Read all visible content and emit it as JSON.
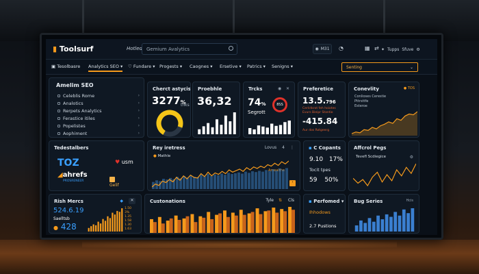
{
  "topbar": {
    "logo": "Toolsurf",
    "home_tab": "Hotled",
    "search_value": "Gemium Avalytics",
    "button_1_label": "M31",
    "menu_label": "Tupps",
    "menu_label_2": "Sfuve"
  },
  "nav": {
    "items": [
      "Tesolbasre",
      "Analytics SEO",
      "Fundare",
      "Progests",
      "Caognes",
      "Ersetive",
      "Patrics",
      "Senigns"
    ],
    "select_value": "Senting"
  },
  "sidebar": {
    "title": "Amelim SEO",
    "items": [
      "Celeblis Rome",
      "Analotics",
      "Rerpets Analytics",
      "Ferastice itiles",
      "Popelistes",
      "Aophiment"
    ]
  },
  "card_a": {
    "title": "Cherct astycis",
    "value": "3277",
    "unit": "%",
    "sub": "tnks",
    "gauge_percent": 72
  },
  "card_b": {
    "title": "Proebhle",
    "value": "36,32",
    "bars": [
      20,
      32,
      45,
      28,
      60,
      38,
      75,
      52,
      88
    ]
  },
  "card_c": {
    "title": "Trcks",
    "value": "74",
    "unit": "%",
    "label": "Segrott",
    "badge": "8SS",
    "bars": [
      28,
      22,
      40,
      35,
      30,
      48,
      38,
      42,
      55,
      62
    ]
  },
  "card_d": {
    "title": "Preferetice",
    "value_1": "13.5.",
    "value_1_small": "796",
    "value_2": "-415.84",
    "lines": [
      "Cerlctkrot feh hoiotes",
      "Evurs Bieipr Stantio",
      "Aur dos Rotgeerg"
    ]
  },
  "card_e": {
    "title": "Conevlity",
    "badge": "TOS",
    "lines": [
      "Conlioses Cerestie",
      "Pttrsttfe",
      "Esteroe"
    ],
    "line": [
      10,
      14,
      12,
      20,
      18,
      26,
      22,
      30,
      34,
      40,
      36,
      48,
      44,
      55,
      60,
      58,
      66
    ]
  },
  "brands": {
    "title": "Tedestalbers",
    "logos": [
      "TOZ",
      "ahrefs",
      "usm"
    ],
    "ahrefs_sub": "PROSRENEER",
    "usm_sub": "Gelif"
  },
  "traffic": {
    "title": "Rey iretress",
    "menu": "Lovus",
    "badge": "4",
    "legend": "Mathle",
    "annotation": "Amealthe",
    "series": [
      18,
      22,
      20,
      26,
      24,
      28,
      25,
      31,
      27,
      33,
      29,
      34,
      31,
      30,
      36,
      32,
      38,
      33,
      37,
      35,
      39,
      36,
      41,
      38,
      40,
      42,
      39,
      44,
      41,
      45,
      43,
      46,
      44,
      48,
      46,
      50,
      47,
      52,
      49,
      53
    ]
  },
  "capacity": {
    "title": "C Copants",
    "v1": "9.10",
    "v2": "17%",
    "label": "Tocit tpes",
    "v3": "59",
    "v4": "50%"
  },
  "pages": {
    "title": "Affcrol Pegs",
    "subtitle": "Tevefl Scdiegice",
    "line": [
      20,
      12,
      18,
      8,
      22,
      30,
      14,
      26,
      16,
      34,
      24,
      38,
      28,
      44
    ]
  },
  "risk": {
    "title": "Rish Mercs",
    "value_1": "524.6.19",
    "value_2": "Saelltsb",
    "value_3": "428",
    "axis": [
      "1.50",
      "3%",
      "1.35",
      "1.58",
      "1.30",
      "1.63"
    ],
    "bars": [
      8,
      12,
      16,
      14,
      22,
      18,
      28,
      24,
      34,
      30,
      42,
      38,
      46,
      44,
      52
    ]
  },
  "customers": {
    "title": "Custonations",
    "tab_1": "Tyle",
    "tab_2": "Cls",
    "bars": [
      {
        "o": 38,
        "b": 30
      },
      {
        "o": 44,
        "b": 26
      },
      {
        "o": 34,
        "b": 40
      },
      {
        "o": 48,
        "b": 36
      },
      {
        "o": 40,
        "b": 46
      },
      {
        "o": 52,
        "b": 30
      },
      {
        "o": 46,
        "b": 42
      },
      {
        "o": 58,
        "b": 38
      },
      {
        "o": 50,
        "b": 54
      },
      {
        "o": 62,
        "b": 44
      },
      {
        "o": 56,
        "b": 48
      },
      {
        "o": 64,
        "b": 50
      },
      {
        "o": 54,
        "b": 58
      },
      {
        "o": 68,
        "b": 52
      },
      {
        "o": 60,
        "b": 62
      },
      {
        "o": 70,
        "b": 56
      },
      {
        "o": 66,
        "b": 60
      },
      {
        "o": 72,
        "b": 64
      }
    ]
  },
  "perf": {
    "title": "Perfomed",
    "line_1": "Ihhodows",
    "line_2": "2.7 Pustions"
  },
  "bug": {
    "title": "Bug Series",
    "menu": "Hcis",
    "bars": [
      10,
      18,
      14,
      22,
      16,
      26,
      20,
      28,
      24,
      32,
      26,
      36,
      30,
      38
    ]
  }
}
